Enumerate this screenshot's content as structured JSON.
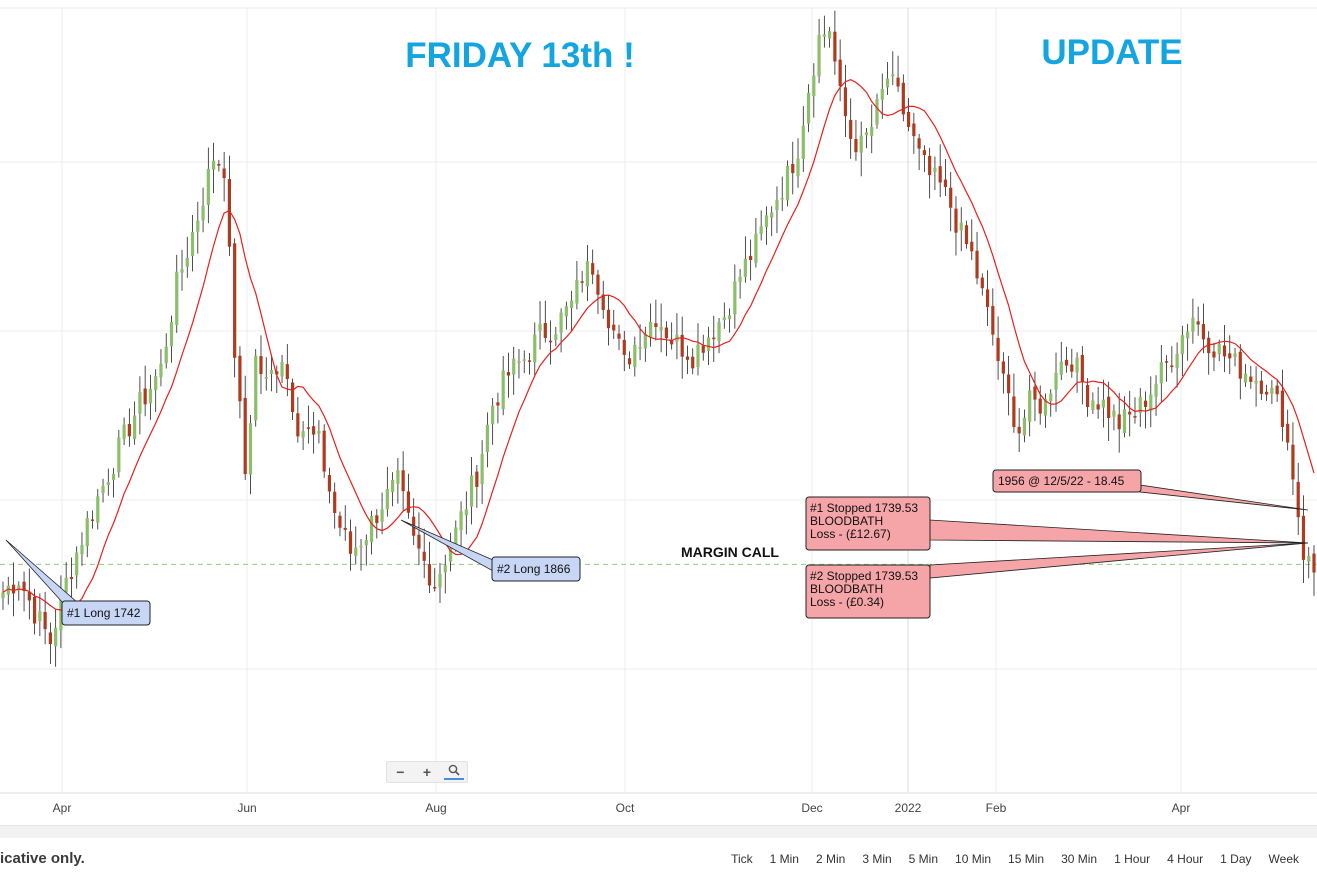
{
  "annotations": {
    "friday": "FRIDAY 13th !",
    "update": "UPDATE",
    "margin_call": "MARGIN CALL",
    "long1": "#1 Long 1742",
    "long2": "#2 Long 1866",
    "price_note": "1956 @ 12/5/22 - 18.45",
    "stop1": [
      "#1 Stopped 1739.53",
      "BLOODBATH",
      "Loss - (£12.67)"
    ],
    "stop2": [
      "#2 Stopped 1739.53",
      "BLOODBATH",
      "Loss - (£0.34)"
    ]
  },
  "colors": {
    "up": "#8cbf6b",
    "down": "#b03a1f",
    "ma": "#e8201a",
    "title": "#12a5e0",
    "blue_callout_fill": "#c8d6f6",
    "red_callout_fill": "#f5a5a8",
    "dashed_line": "#8fd07a"
  },
  "chart_data": {
    "type": "candlestick",
    "x_ticks": [
      "Apr",
      "Jun",
      "Aug",
      "Oct",
      "Dec",
      "2022",
      "Feb",
      "Apr"
    ],
    "series": [
      {
        "name": "",
        "kind": "candles",
        "anchors": [
          [
            0,
            1740
          ],
          [
            3,
            1747
          ],
          [
            6,
            1730
          ],
          [
            9,
            1715
          ],
          [
            12,
            1745
          ],
          [
            16,
            1775
          ],
          [
            20,
            1800
          ],
          [
            25,
            1830
          ],
          [
            30,
            1853
          ],
          [
            33,
            1895
          ],
          [
            37,
            1930
          ],
          [
            40,
            1960
          ],
          [
            42,
            1955
          ],
          [
            44,
            1862
          ],
          [
            46,
            1800
          ],
          [
            48,
            1858
          ],
          [
            50,
            1845
          ],
          [
            53,
            1860
          ],
          [
            56,
            1825
          ],
          [
            60,
            1815
          ],
          [
            63,
            1780
          ],
          [
            66,
            1760
          ],
          [
            69,
            1770
          ],
          [
            72,
            1785
          ],
          [
            75,
            1795
          ],
          [
            78,
            1765
          ],
          [
            82,
            1745
          ],
          [
            86,
            1770
          ],
          [
            90,
            1800
          ],
          [
            93,
            1835
          ],
          [
            96,
            1850
          ],
          [
            99,
            1858
          ],
          [
            102,
            1870
          ],
          [
            105,
            1875
          ],
          [
            108,
            1885
          ],
          [
            110,
            1900
          ],
          [
            112,
            1905
          ],
          [
            115,
            1880
          ],
          [
            118,
            1855
          ],
          [
            121,
            1870
          ],
          [
            124,
            1880
          ],
          [
            127,
            1868
          ],
          [
            131,
            1860
          ],
          [
            134,
            1870
          ],
          [
            137,
            1880
          ],
          [
            140,
            1900
          ],
          [
            143,
            1915
          ],
          [
            146,
            1935
          ],
          [
            149,
            1950
          ],
          [
            151,
            1965
          ],
          [
            153,
            1995
          ],
          [
            155,
            2020
          ],
          [
            157,
            2025
          ],
          [
            159,
            1990
          ],
          [
            161,
            1970
          ],
          [
            163,
            1965
          ],
          [
            165,
            1975
          ],
          [
            168,
            2000
          ],
          [
            170,
            1990
          ],
          [
            172,
            1975
          ],
          [
            174,
            1960
          ],
          [
            176,
            1950
          ],
          [
            178,
            1945
          ],
          [
            180,
            1935
          ],
          [
            182,
            1920
          ],
          [
            184,
            1910
          ],
          [
            186,
            1890
          ],
          [
            188,
            1870
          ],
          [
            190,
            1845
          ],
          [
            193,
            1822
          ],
          [
            195,
            1835
          ],
          [
            198,
            1835
          ],
          [
            200,
            1855
          ],
          [
            203,
            1858
          ],
          [
            206,
            1840
          ],
          [
            209,
            1835
          ],
          [
            212,
            1825
          ],
          [
            215,
            1830
          ],
          [
            218,
            1842
          ],
          [
            221,
            1855
          ],
          [
            224,
            1870
          ],
          [
            226,
            1880
          ],
          [
            228,
            1870
          ],
          [
            231,
            1862
          ],
          [
            234,
            1855
          ],
          [
            237,
            1850
          ],
          [
            240,
            1845
          ],
          [
            243,
            1830
          ],
          [
            245,
            1800
          ],
          [
            247,
            1760
          ],
          [
            249,
            1750
          ]
        ]
      }
    ],
    "ma": {
      "name": "",
      "period": 10
    },
    "y_range": [
      1640,
      2030
    ],
    "reference_level": 1754,
    "grid": true
  },
  "footer": {
    "disclaimer": "icative only.",
    "timeframes": [
      "Tick",
      "1 Min",
      "2 Min",
      "3 Min",
      "5 Min",
      "10 Min",
      "15 Min",
      "30 Min",
      "1 Hour",
      "4 Hour",
      "1 Day",
      "Week"
    ]
  }
}
